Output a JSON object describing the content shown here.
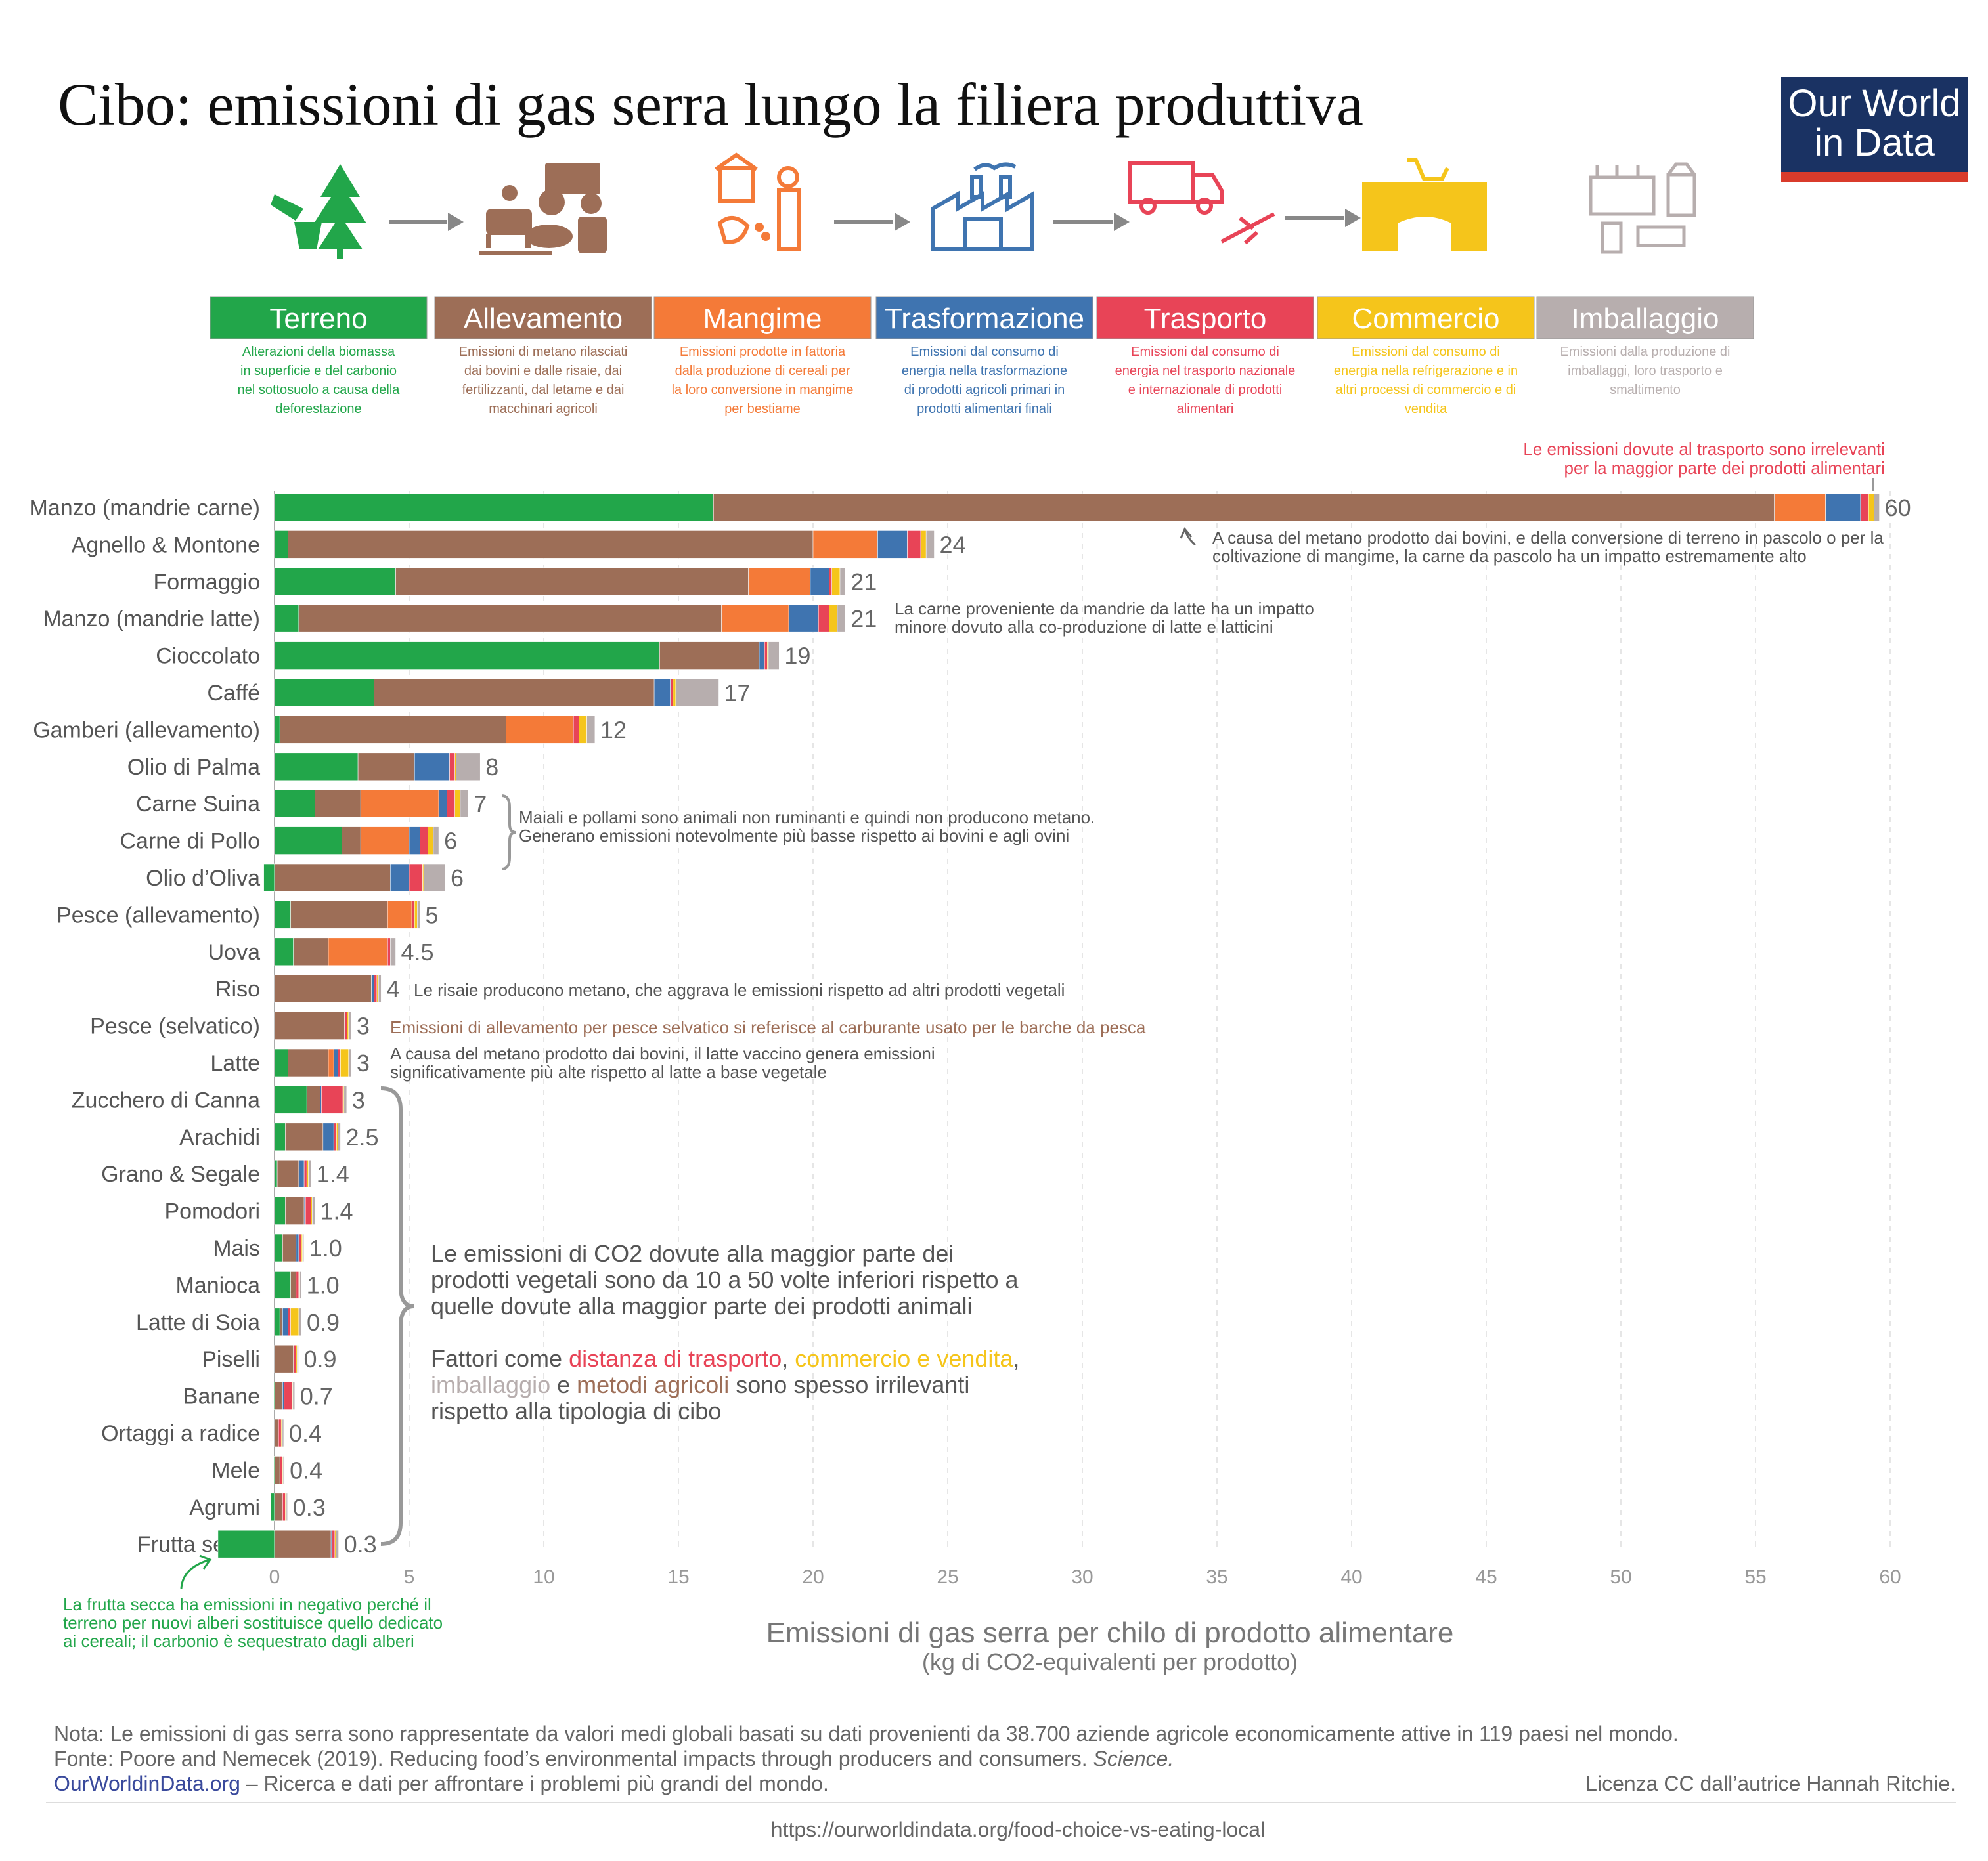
{
  "title": "Cibo: emissioni di gas serra lungo la filiera produttiva",
  "logo": {
    "line1": "Our World",
    "line2": "in Data"
  },
  "colors": {
    "Terreno": "#22a64a",
    "Allevamento": "#9d6e57",
    "Mangime": "#f47a38",
    "Trasformazione": "#3f74b0",
    "Trasporto": "#e84457",
    "Commercio": "#f5c51b",
    "Imballaggio": "#b7aeae"
  },
  "icons": [
    "deforestation-icon",
    "farm-animals-tractor-icon",
    "farmer-feed-icon",
    "factory-icon",
    "truck-plane-icon",
    "supermarket-icon",
    "packaging-icon"
  ],
  "categories": [
    {
      "name": "Terreno",
      "desc": [
        "Alterazioni della biomassa",
        "in superficie e del carbonio",
        "nel sottosuolo a causa della",
        "deforestazione"
      ]
    },
    {
      "name": "Allevamento",
      "desc": [
        "Emissioni di metano rilasciati",
        "dai bovini e dalle risaie, dai",
        "fertilizzanti, dal letame e dai",
        "macchinari agricoli"
      ]
    },
    {
      "name": "Mangime",
      "desc": [
        "Emissioni prodotte in fattoria",
        "dalla produzione di cereali per",
        "la loro conversione in mangime",
        "per bestiame"
      ]
    },
    {
      "name": "Trasformazione",
      "desc": [
        "Emissioni dal consumo di",
        "energia nella trasformazione",
        "di prodotti agricoli primari in",
        "prodotti alimentari finali"
      ]
    },
    {
      "name": "Trasporto",
      "desc": [
        "Emissioni dal consumo di",
        "energia nel trasporto nazionale",
        "e internazionale di prodotti",
        "alimentari"
      ]
    },
    {
      "name": "Commercio",
      "desc": [
        "Emissioni dal consumo di",
        "energia nella refrigerazione e in",
        "altri processi di commercio e di",
        "vendita"
      ]
    },
    {
      "name": "Imballaggio",
      "desc": [
        "Emissioni dalla produzione di",
        "imballaggi, loro trasporto e",
        "smaltimento"
      ]
    }
  ],
  "chart_data": {
    "type": "bar",
    "orientation": "horizontal",
    "stacked": true,
    "xlabel": "Emissioni di gas serra per chilo di prodotto alimentare",
    "xlabel_sub": "(kg di CO2-equivalenti per prodotto)",
    "xlim": [
      -2,
      60
    ],
    "xticks": [
      0,
      5,
      10,
      15,
      20,
      25,
      30,
      35,
      40,
      45,
      50,
      55,
      60
    ],
    "series": [
      "Terreno",
      "Allevamento",
      "Mangime",
      "Trasformazione",
      "Trasporto",
      "Commercio",
      "Imballaggio"
    ],
    "rows": [
      {
        "label": "Manzo (mandrie carne)",
        "total": "60",
        "values": [
          16.3,
          39.4,
          1.9,
          1.3,
          0.3,
          0.2,
          0.2
        ]
      },
      {
        "label": "Agnello & Montone",
        "total": "24",
        "values": [
          0.5,
          19.5,
          2.4,
          1.1,
          0.5,
          0.2,
          0.3
        ]
      },
      {
        "label": "Formaggio",
        "total": "21",
        "values": [
          4.5,
          13.1,
          2.3,
          0.7,
          0.1,
          0.3,
          0.2
        ]
      },
      {
        "label": "Manzo (mandrie latte)",
        "total": "21",
        "values": [
          0.9,
          15.7,
          2.5,
          1.1,
          0.4,
          0.3,
          0.3
        ]
      },
      {
        "label": "Cioccolato",
        "total": "19",
        "values": [
          14.3,
          3.7,
          0,
          0.2,
          0.1,
          0.04,
          0.4
        ]
      },
      {
        "label": "Caffé",
        "total": "17",
        "values": [
          3.7,
          10.4,
          0,
          0.6,
          0.1,
          0.1,
          1.6
        ]
      },
      {
        "label": "Gamberi (allevamento)",
        "total": "12",
        "values": [
          0.2,
          8.4,
          2.5,
          0,
          0.2,
          0.3,
          0.3
        ]
      },
      {
        "label": "Olio di Palma",
        "total": "8",
        "values": [
          3.1,
          2.1,
          0,
          1.3,
          0.2,
          0.04,
          0.9
        ]
      },
      {
        "label": "Carne Suina",
        "total": "7",
        "values": [
          1.5,
          1.7,
          2.9,
          0.3,
          0.3,
          0.2,
          0.3
        ]
      },
      {
        "label": "Carne di Pollo",
        "total": "6",
        "values": [
          2.5,
          0.7,
          1.8,
          0.4,
          0.3,
          0.2,
          0.2
        ]
      },
      {
        "label": "Olio d’Oliva",
        "total": "6",
        "values": [
          -0.4,
          4.3,
          0,
          0.7,
          0.5,
          0.04,
          0.8
        ]
      },
      {
        "label": "Pesce (allevamento)",
        "total": "5",
        "values": [
          0.6,
          3.6,
          0.9,
          0,
          0.1,
          0.1,
          0.1
        ]
      },
      {
        "label": "Uova",
        "total": "4.5",
        "values": [
          0.7,
          1.3,
          2.2,
          0,
          0.1,
          0,
          0.2
        ]
      },
      {
        "label": "Riso",
        "total": "4",
        "values": [
          0,
          3.6,
          0,
          0.1,
          0.1,
          0.06,
          0.1
        ]
      },
      {
        "label": "Pesce (selvatico)",
        "total": "3",
        "values": [
          0,
          2.6,
          0,
          0,
          0.1,
          0.05,
          0.1
        ]
      },
      {
        "label": "Latte",
        "total": "3",
        "values": [
          0.5,
          1.5,
          0.2,
          0.15,
          0.1,
          0.3,
          0.1
        ]
      },
      {
        "label": "Zucchero di Canna",
        "total": "3",
        "values": [
          1.2,
          0.5,
          0,
          0.04,
          0.8,
          0.04,
          0.1
        ]
      },
      {
        "label": "Arachidi",
        "total": "2.5",
        "values": [
          0.4,
          1.4,
          0,
          0.4,
          0.1,
          0.05,
          0.1
        ]
      },
      {
        "label": "Grano & Segale",
        "total": "1.4",
        "values": [
          0.1,
          0.8,
          0,
          0.2,
          0.1,
          0.06,
          0.1
        ]
      },
      {
        "label": "Pomodori",
        "total": "1.4",
        "values": [
          0.4,
          0.7,
          0,
          0.05,
          0.2,
          0.05,
          0.1
        ]
      },
      {
        "label": "Mais",
        "total": "1.0",
        "values": [
          0.3,
          0.5,
          0,
          0.1,
          0.1,
          0.04,
          0.05
        ]
      },
      {
        "label": "Manioca",
        "total": "1.0",
        "values": [
          0.6,
          0.2,
          0,
          0,
          0.1,
          0.04,
          0.05
        ]
      },
      {
        "label": "Latte di Soia",
        "total": "0.9",
        "values": [
          0.2,
          0.1,
          0,
          0.2,
          0.1,
          0.3,
          0.1
        ]
      },
      {
        "label": "Piselli",
        "total": "0.9",
        "values": [
          0,
          0.7,
          0,
          0,
          0.1,
          0.04,
          0.05
        ]
      },
      {
        "label": "Banane",
        "total": "0.7",
        "values": [
          -0.03,
          0.3,
          0,
          0.06,
          0.3,
          0.02,
          0.07
        ]
      },
      {
        "label": "Ortaggi a radice",
        "total": "0.4",
        "values": [
          0,
          0.15,
          0,
          0,
          0.1,
          0.04,
          0.05
        ]
      },
      {
        "label": "Mele",
        "total": "0.4",
        "values": [
          -0.03,
          0.2,
          0,
          0,
          0.1,
          0.02,
          0.05
        ]
      },
      {
        "label": "Agrumi",
        "total": "0.3",
        "values": [
          -0.14,
          0.3,
          0,
          0,
          0.1,
          0.04,
          0.04
        ]
      },
      {
        "label": "Frutta secca",
        "total": "0.3",
        "values": [
          -2.1,
          2.1,
          0,
          0.04,
          0.1,
          0.04,
          0.1
        ]
      }
    ]
  },
  "annotations": {
    "trasporto": [
      "Le emissioni dovute al trasporto sono irrelevanti",
      "per la maggior parte dei prodotti alimentari"
    ],
    "manzo": [
      "A causa del metano prodotto dai bovini, e della conversione di terreno in pascolo o per la",
      "coltivazione di mangime, la carne da pascolo ha un impatto estremamente alto"
    ],
    "latte_manzo": [
      "La carne proveniente da mandrie da latte ha un impatto",
      "minore dovuto alla co-produzione di latte e latticini"
    ],
    "maiali": [
      "Maiali e pollami sono animali non ruminanti e quindi non producono metano.",
      "Generano emissioni notevolmente più basse rispetto ai bovini e agli ovini"
    ],
    "riso": "Le risaie producono metano, che aggrava le emissioni rispetto ad altri prodotti vegetali",
    "pesce": "Emissioni di allevamento per pesce selvatico si referisce al carburante usato per le barche da pesca",
    "latte": [
      "A causa del metano prodotto dai bovini, il latte vaccino genera emissioni",
      "significativamente più alte rispetto al latte a base vegetale"
    ],
    "vegetali": [
      "Le emissioni di CO2 dovute alla maggior parte dei",
      "prodotti vegetali sono da 10 a 50 volte inferiori rispetto a",
      "quelle dovute alla maggior parte dei prodotti animali"
    ],
    "fattori": {
      "a": "Fattori come ",
      "trasporto": "distanza di trasporto",
      "sep1": ", ",
      "commercio": "commercio e vendita",
      "sep2": ",",
      "imballaggio": "imballaggio",
      "sep3": " e ",
      "metodi": "metodi agricoli",
      "b": " sono spesso irrilevanti",
      "c": "rispetto alla tipologia di cibo"
    },
    "frutta": [
      "La frutta secca ha emissioni in negativo perché il",
      "terreno per nuovi alberi sostituisce quello dedicato",
      "ai cereali; il carbonio è sequestrato dagli alberi"
    ]
  },
  "footer": {
    "nota": "Nota: Le emissioni di gas serra sono rappresentate da valori medi globali basati su dati provenienti da 38.700 aziende agricole economicamente attive in 119 paesi nel mondo.",
    "fonte": "Fonte: Poore and Nemecek (2019). Reducing food’s environmental impacts through producers and consumers. ",
    "fonte_journal": "Science.",
    "site": "OurWorldinData.org",
    "site_rest": " – Ricerca e dati per affrontare i problemi più grandi del mondo.",
    "licenza": "Licenza CC dall’autrice Hannah Ritchie.",
    "url": "https://ourworldindata.org/food-choice-vs-eating-local"
  }
}
